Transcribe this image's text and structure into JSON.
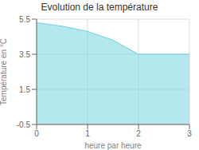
{
  "chart_data": {
    "type": "area",
    "title": "Evolution de la température",
    "x_label": "heure par heure",
    "y_label": "Température en °C",
    "x": [
      0,
      0.5,
      1.0,
      1.5,
      2.0,
      2.5,
      3.0
    ],
    "values": [
      5.3,
      5.1,
      4.8,
      4.3,
      3.5,
      3.5,
      3.5
    ],
    "color": "#6bcfdf",
    "xlim": [
      0,
      3
    ],
    "ylim": [
      -0.5,
      5.5
    ],
    "xticks": [
      0,
      1,
      2,
      3
    ],
    "yticks": [
      -0.5,
      1.5,
      3.5,
      5.5
    ],
    "grid": true
  }
}
